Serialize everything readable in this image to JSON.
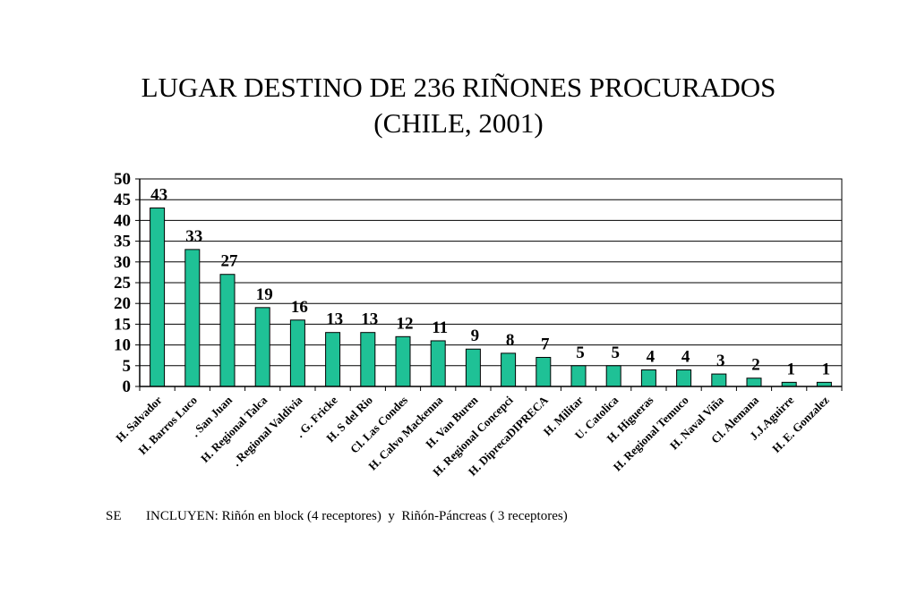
{
  "chart_data": {
    "type": "bar",
    "title": "LUGAR DESTINO DE 236 RIÑONES PROCURADOS",
    "subtitle": "(CHILE, 2001)",
    "categories": [
      "H. Salvador",
      "H. Barros Luco",
      ". San Juan",
      "H. Regional Talca",
      ". Regional Valdivia",
      ". G. Fricke",
      "H. S del Rio",
      "Cl. Las Condes",
      "H. Calvo Mackenna",
      "H. Van Buren",
      "H. Regional Concepci",
      "H. DiprecaDIPRECA",
      "H. Militar",
      "U. Catolica",
      "H. Higueras",
      "H. Regional Temuco",
      "H. Naval Viña",
      "Cl. Alemana",
      "J.J.Aguirre",
      "H. E. Gonzalez"
    ],
    "values": [
      43,
      33,
      27,
      19,
      16,
      13,
      13,
      12,
      11,
      9,
      8,
      7,
      5,
      5,
      4,
      4,
      3,
      2,
      1,
      1
    ],
    "ylim": [
      0,
      50
    ],
    "yticks": [
      0,
      5,
      10,
      15,
      20,
      25,
      30,
      35,
      40,
      45,
      50
    ],
    "grid": true,
    "bar_color": "#1fc196",
    "xlabel": "",
    "ylabel": ""
  },
  "footnote": {
    "prefix": "SE",
    "text": "INCLUYEN: Riñón en block (4 receptores)  y  Riñón-Páncreas ( 3 receptores)"
  }
}
